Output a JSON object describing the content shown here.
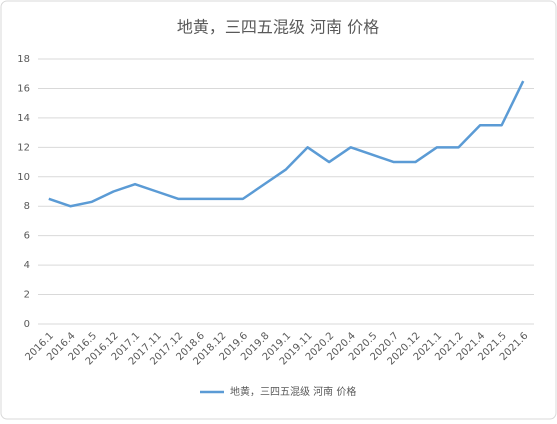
{
  "chart_data": {
    "type": "line",
    "title": "地黄，三四五混级 河南 价格",
    "categories": [
      "2016.1",
      "2016.4",
      "2016.5",
      "2016.12",
      "2017.1",
      "2017.11",
      "2017.12",
      "2018.6",
      "2018.12",
      "2019.6",
      "2019.8",
      "2019.1",
      "2019.11",
      "2020.2",
      "2020.4",
      "2020.5",
      "2020.7",
      "2020.12",
      "2021.1",
      "2021.2",
      "2021.4",
      "2021.5",
      "2021.6"
    ],
    "series": [
      {
        "name": "地黄，三四五混级 河南 价格",
        "color": "#5b9bd5",
        "values": [
          8.5,
          8,
          8.3,
          9,
          9.5,
          9,
          8.5,
          8.5,
          8.5,
          8.5,
          9.5,
          10.5,
          12,
          11,
          12,
          11.5,
          11,
          11,
          12,
          12,
          13.5,
          13.5,
          16.5
        ]
      }
    ],
    "ylim": [
      0,
      18
    ],
    "yticks": [
      0,
      2,
      4,
      6,
      8,
      10,
      12,
      14,
      16,
      18
    ],
    "grid": true,
    "legend": "bottom"
  }
}
